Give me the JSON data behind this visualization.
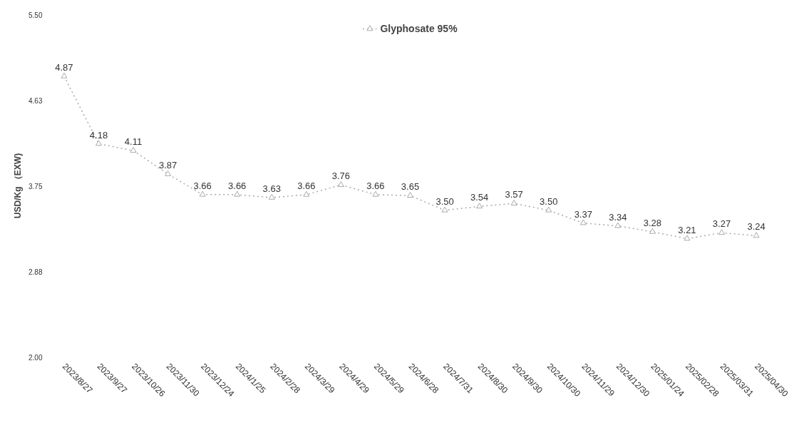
{
  "chart_data": {
    "type": "line",
    "ylabel": "USD/Kg （EXW)",
    "categories": [
      "2023/8/27",
      "2023/9/27",
      "2023/10/26",
      "2023/11/30",
      "2023/12/24",
      "2024/1/25",
      "2024/2/28",
      "2024/3/29",
      "2024/4/29",
      "2024/5/29",
      "2024/6/28",
      "2024/7/31",
      "2024/8/30",
      "2024/9/30",
      "2024/10/30",
      "2024/11/29",
      "2024/12/30",
      "2025/01/24",
      "2025/02/28",
      "2025/03/31",
      "2025/04/30"
    ],
    "series": [
      {
        "name": "Glyphosate 95%",
        "color": "#aaaaaa",
        "values": [
          4.87,
          4.18,
          4.11,
          3.87,
          3.66,
          3.66,
          3.63,
          3.66,
          3.76,
          3.66,
          3.65,
          3.5,
          3.54,
          3.57,
          3.5,
          3.37,
          3.34,
          3.28,
          3.21,
          3.27,
          3.24
        ],
        "value_labels": [
          "4.87",
          "4.18",
          "4.11",
          "3.87",
          "3.66",
          "3.66",
          "3.63",
          "3.66",
          "3.76",
          "3.66",
          "3.65",
          "3.50",
          "3.54",
          "3.57",
          "3.50",
          "3.37",
          "3.34",
          "3.28",
          "3.21",
          "3.27",
          "3.24"
        ]
      }
    ],
    "ylim": [
      2.0,
      5.5
    ],
    "yticks": [
      {
        "value": 2.0,
        "label": "2.00"
      },
      {
        "value": 2.875,
        "label": "2.88"
      },
      {
        "value": 3.75,
        "label": "3.75"
      },
      {
        "value": 4.625,
        "label": "4.63"
      },
      {
        "value": 5.5,
        "label": "5.50"
      }
    ],
    "legend": "top",
    "grid": false,
    "marker": "triangle",
    "line_style": "dotted"
  }
}
